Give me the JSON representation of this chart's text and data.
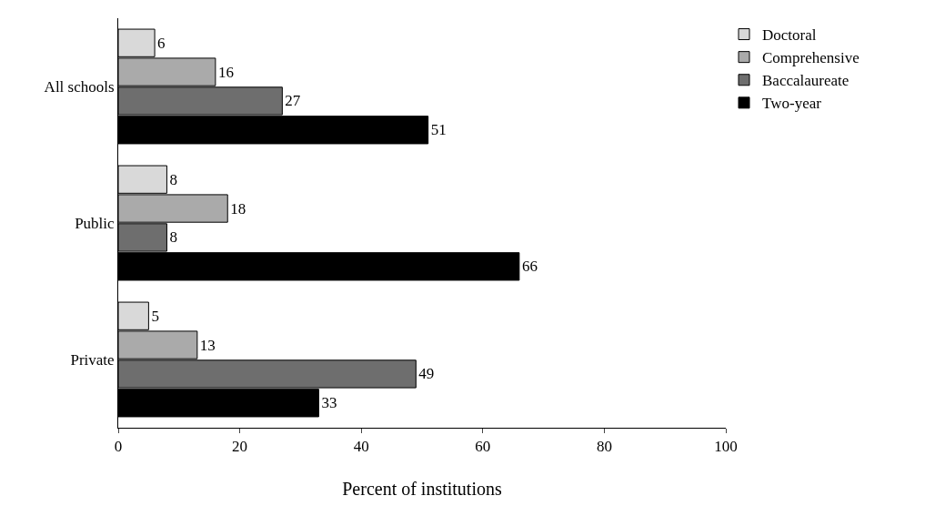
{
  "chart_data": {
    "type": "bar",
    "orientation": "horizontal",
    "xlabel": "Percent of institutions",
    "categories": [
      "All schools",
      "Public",
      "Private"
    ],
    "series": [
      {
        "name": "Doctoral",
        "color": "#d9d9d9",
        "values": [
          6,
          8,
          5
        ]
      },
      {
        "name": "Comprehensive",
        "color": "#aaaaaa",
        "values": [
          16,
          18,
          13
        ]
      },
      {
        "name": "Baccalaureate",
        "color": "#6e6e6e",
        "values": [
          27,
          8,
          49
        ]
      },
      {
        "name": "Two-year",
        "color": "#000000",
        "values": [
          51,
          66,
          33
        ]
      }
    ],
    "xlim": [
      0,
      100
    ],
    "xticks": [
      0,
      20,
      40,
      60,
      80,
      100
    ],
    "data_labels": true,
    "legend": "top right"
  }
}
